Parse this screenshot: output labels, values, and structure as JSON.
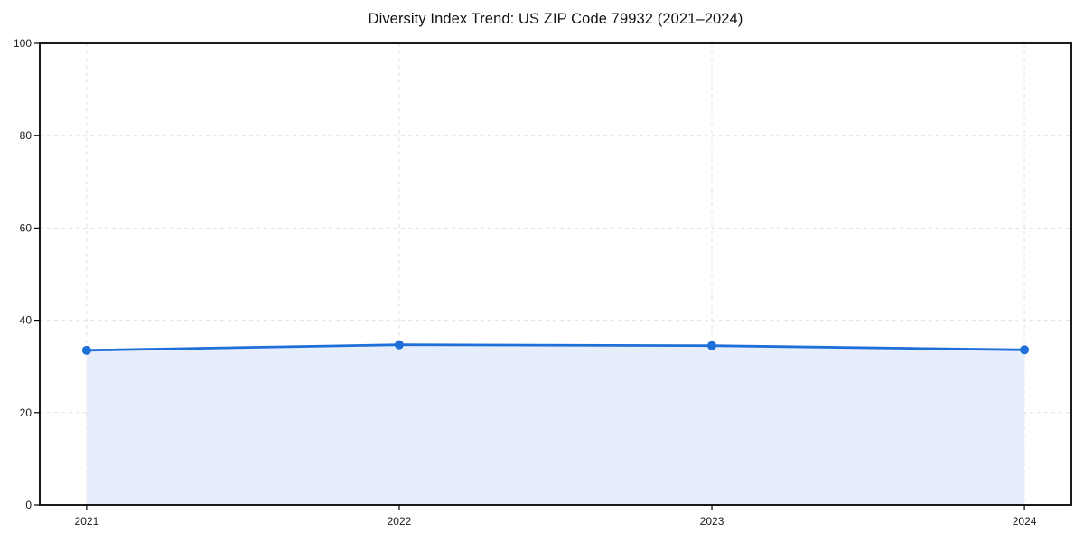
{
  "chart_data": {
    "type": "area",
    "title": "Diversity Index Trend: US ZIP Code 79932 (2021–2024)",
    "x": [
      2021,
      2022,
      2023,
      2024
    ],
    "series": [
      {
        "name": "Diversity Index",
        "values": [
          33.5,
          34.7,
          34.5,
          33.6
        ]
      }
    ],
    "xlabel": "",
    "ylabel": "",
    "ylim": [
      0,
      100
    ],
    "yticks": [
      0,
      20,
      40,
      60,
      80,
      100
    ],
    "xticks": [
      "2021",
      "2022",
      "2023",
      "2024"
    ],
    "x_margin_frac": 0.05,
    "grid": "dashed",
    "legend": "none",
    "colors": {
      "line": "#1f6fd9",
      "marker": "#1f6fd9",
      "fill": "#e7eefb",
      "grid": "#e1e1e1",
      "spine": "#000000",
      "tick_text": "#1a1a1a",
      "background": "#ffffff"
    }
  }
}
